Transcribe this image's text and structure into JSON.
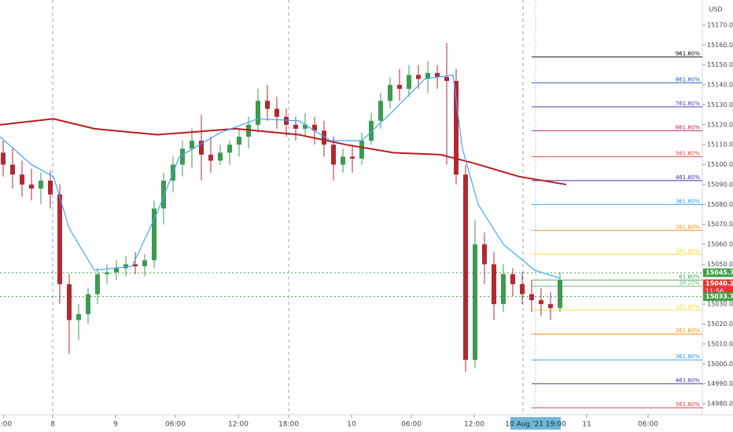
{
  "chart_data": {
    "type": "candlestick",
    "currency": "USD",
    "xlim": [
      0,
      223.25
    ],
    "ylim": [
      14974.5,
      15182.6
    ],
    "xticks": [
      {
        "value": 1.25,
        "label": "2:00"
      },
      {
        "value": 16.75,
        "label": "8"
      },
      {
        "value": 36.75,
        "label": "9"
      },
      {
        "value": 55.75,
        "label": "06:00"
      },
      {
        "value": 75.75,
        "label": "12:00"
      },
      {
        "value": 91.75,
        "label": "18:00"
      },
      {
        "value": 111.75,
        "label": "10"
      },
      {
        "value": 130.75,
        "label": "06:00"
      },
      {
        "value": 150.75,
        "label": "12:00"
      },
      {
        "value": 186.5,
        "label": "11"
      },
      {
        "value": 206,
        "label": "06:00"
      }
    ],
    "crosshair": {
      "x": 170.25,
      "label": "10 Aug '21  19:00"
    },
    "yticks": [
      {
        "value": 14980,
        "label": "14980.00"
      },
      {
        "value": 14990,
        "label": "14990.00"
      },
      {
        "value": 15000,
        "label": "15000.00"
      },
      {
        "value": 15010,
        "label": "15010.00"
      },
      {
        "value": 15020,
        "label": "15020.00"
      },
      {
        "value": 15030,
        "label": "15030.00"
      },
      {
        "value": 15050,
        "label": "15050.00"
      },
      {
        "value": 15060,
        "label": "15060.00"
      },
      {
        "value": 15070,
        "label": "15070.00"
      },
      {
        "value": 15080,
        "label": "15080.00"
      },
      {
        "value": 15090,
        "label": "15090.00"
      },
      {
        "value": 15100,
        "label": "15100.00"
      },
      {
        "value": 15110,
        "label": "15110.00"
      },
      {
        "value": 15120,
        "label": "15120.00"
      },
      {
        "value": 15130,
        "label": "15130.00"
      },
      {
        "value": 15140,
        "label": "15140.00"
      },
      {
        "value": 15150,
        "label": "15150.00"
      },
      {
        "value": 15160,
        "label": "15160.00"
      },
      {
        "value": 15170,
        "label": "15170.00"
      }
    ],
    "candles": {
      "up_color": "#3d9a50",
      "down_color": "#b22833",
      "x": [
        1,
        4,
        7,
        10,
        13,
        16,
        19,
        22,
        25,
        28,
        31,
        34,
        37,
        40,
        43,
        46,
        49,
        52,
        55,
        58,
        61,
        64,
        67,
        70,
        73,
        76,
        79,
        82,
        85,
        88,
        91,
        94,
        97,
        100,
        103,
        106,
        109,
        112,
        115,
        118,
        121,
        124,
        127,
        130,
        133,
        136,
        139,
        142,
        145,
        148,
        151,
        154,
        157,
        160,
        163,
        166,
        169,
        172,
        175,
        178
      ],
      "open": [
        15106,
        15100,
        15095,
        15090,
        15088,
        15092,
        15085,
        15040,
        15022,
        15025,
        15035,
        15045,
        15046,
        15048,
        15050,
        15049,
        15052,
        15078,
        15092,
        15100,
        15108,
        15112,
        15105,
        15102,
        15106,
        15110,
        15114,
        15120,
        15132,
        15128,
        15124,
        15120,
        15118,
        15120,
        15117,
        15110,
        15100,
        15104,
        15103,
        15112,
        15122,
        15132,
        15140,
        15138,
        15145,
        15143,
        15146,
        15144,
        15142,
        15095,
        15002,
        15060,
        15050,
        15030,
        15045,
        15040,
        15035,
        15032,
        15030,
        15028
      ],
      "high": [
        15112,
        15108,
        15102,
        15098,
        15096,
        15097,
        15090,
        15045,
        15030,
        15038,
        15048,
        15050,
        15052,
        15054,
        15056,
        15055,
        15082,
        15096,
        15104,
        15112,
        15118,
        15125,
        15114,
        15110,
        15112,
        15118,
        15124,
        15138,
        15140,
        15134,
        15128,
        15124,
        15126,
        15124,
        15122,
        15114,
        15108,
        15110,
        15116,
        15126,
        15136,
        15144,
        15148,
        15150,
        15150,
        15152,
        15150,
        15161,
        15148,
        15100,
        15072,
        15066,
        15056,
        15050,
        15048,
        15046,
        15042,
        15038,
        15036,
        15046
      ],
      "low": [
        15094,
        15088,
        15084,
        15082,
        15080,
        15078,
        15030,
        15005,
        15012,
        15020,
        15030,
        15040,
        15042,
        15044,
        15045,
        15044,
        15048,
        15070,
        15086,
        15094,
        15098,
        15092,
        15096,
        15100,
        15100,
        15104,
        15108,
        15116,
        15122,
        15118,
        15114,
        15112,
        15114,
        15110,
        15104,
        15092,
        15096,
        15096,
        15100,
        15110,
        15118,
        15128,
        15132,
        15134,
        15138,
        15136,
        15138,
        15100,
        15090,
        14996,
        14998,
        15040,
        15022,
        15026,
        15034,
        15030,
        15026,
        15024,
        15022,
        15026
      ],
      "close": [
        15100,
        15095,
        15090,
        15088,
        15092,
        15085,
        15040,
        15022,
        15025,
        15035,
        15045,
        15046,
        15048,
        15050,
        15049,
        15052,
        15078,
        15092,
        15100,
        15108,
        15112,
        15105,
        15102,
        15106,
        15110,
        15114,
        15120,
        15132,
        15128,
        15124,
        15120,
        15118,
        15120,
        15117,
        15110,
        15100,
        15104,
        15103,
        15112,
        15122,
        15132,
        15140,
        15138,
        15145,
        15143,
        15146,
        15144,
        15142,
        15095,
        15002,
        15060,
        15050,
        15030,
        15045,
        15040,
        15035,
        15032,
        15030,
        15028,
        15042
      ]
    },
    "lines": [
      {
        "color": "#b71c1c",
        "x": [
          0,
          17,
          30,
          50,
          75,
          95,
          110,
          125,
          140,
          150,
          165,
          180
        ],
        "values": [
          15120,
          15123,
          15118,
          15115,
          15118,
          15115,
          15110,
          15106,
          15105,
          15101,
          15094,
          15090
        ]
      },
      {
        "color": "#42a5f5",
        "x": [
          0,
          10,
          17,
          22,
          30,
          42,
          50,
          57,
          70,
          82,
          95,
          105,
          115,
          125,
          135,
          144,
          147,
          152,
          160,
          170,
          178
        ],
        "values": [
          15114,
          15100,
          15094,
          15068,
          15047,
          15049,
          15076,
          15104,
          15116,
          15123,
          15122,
          15112,
          15112,
          15127,
          15143,
          15145,
          15108,
          15080,
          15060,
          15047,
          15043
        ]
      }
    ],
    "fib_levels": [
      {
        "value": 15154,
        "label": "961.80%",
        "color": "#000000"
      },
      {
        "value": 15141,
        "label": "861.80%",
        "color": "#1e4fc2"
      },
      {
        "value": 15129,
        "label": "761.80%",
        "color": "#5e35b1"
      },
      {
        "value": 15117,
        "label": "661.80%",
        "color": "#c2185b"
      },
      {
        "value": 15104,
        "label": "561.80%",
        "color": "#e53935"
      },
      {
        "value": 15092,
        "label": "461.80%",
        "color": "#4527a0"
      },
      {
        "value": 15080,
        "label": "361.80%",
        "color": "#2196f3"
      },
      {
        "value": 15067,
        "label": "261.80%",
        "color": "#fb8c00"
      },
      {
        "value": 15055,
        "label": "161.80%",
        "color": "#fdd835"
      },
      {
        "value": 15042,
        "label": "61.80%",
        "color": "#43a047"
      },
      {
        "value": 15039,
        "label": "38.20%",
        "color": "#66bb6a"
      },
      {
        "value": 15027,
        "label": "161.80%",
        "color": "#fdd835"
      },
      {
        "value": 15015,
        "label": "261.80%",
        "color": "#fb8c00"
      },
      {
        "value": 15002,
        "label": "361.80%",
        "color": "#2196f3"
      },
      {
        "value": 14990,
        "label": "461.80%",
        "color": "#4527a0"
      },
      {
        "value": 14978,
        "label": "561.80%",
        "color": "#e53935"
      }
    ],
    "price_tags": [
      {
        "value": 15045.75,
        "color": "#43a047"
      },
      {
        "value": 15040.25,
        "color": "#e53935",
        "countdown": "11:56"
      },
      {
        "value": 15033.75,
        "color": "#43a047"
      }
    ]
  }
}
